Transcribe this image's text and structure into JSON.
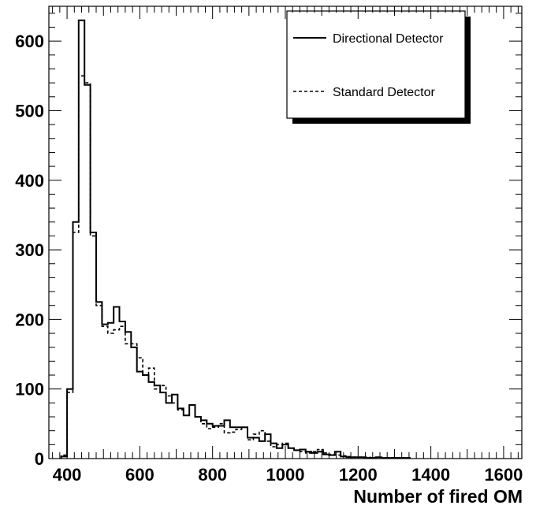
{
  "chart_data": {
    "type": "histogram",
    "title": "",
    "xlabel": "Number of fired OM",
    "ylabel": "",
    "xlim": [
      350,
      1650
    ],
    "ylim": [
      0,
      650
    ],
    "x_ticks": [
      400,
      600,
      800,
      1000,
      1200,
      1400,
      1600
    ],
    "y_ticks": [
      0,
      100,
      200,
      300,
      400,
      500,
      600
    ],
    "grid": false,
    "legend_position": "top-right",
    "bin_width": 16,
    "bin_start": 384,
    "series": [
      {
        "name": "Directional Detector",
        "line_style": "solid",
        "values": [
          3,
          100,
          340,
          630,
          537,
          325,
          225,
          193,
          195,
          218,
          197,
          182,
          160,
          125,
          120,
          110,
          105,
          95,
          80,
          92,
          72,
          62,
          77,
          60,
          55,
          50,
          47,
          47,
          55,
          45,
          45,
          45,
          30,
          30,
          25,
          35,
          22,
          15,
          20,
          15,
          12,
          13,
          10,
          8,
          10,
          6,
          5,
          10,
          3,
          2,
          2,
          2,
          1,
          1,
          2,
          1,
          1,
          1,
          1,
          1
        ]
      },
      {
        "name": "Standard Detector",
        "line_style": "dashed",
        "values": [
          5,
          95,
          325,
          550,
          540,
          320,
          220,
          190,
          180,
          185,
          190,
          165,
          165,
          145,
          120,
          130,
          100,
          105,
          90,
          80,
          70,
          62,
          77,
          60,
          50,
          43,
          45,
          50,
          37,
          38,
          42,
          45,
          27,
          35,
          40,
          25,
          17,
          20,
          22,
          15,
          12,
          10,
          8,
          10,
          13,
          8,
          6,
          5,
          4,
          3,
          2,
          2,
          2,
          1,
          1,
          1,
          1,
          1,
          1,
          1
        ]
      }
    ]
  }
}
